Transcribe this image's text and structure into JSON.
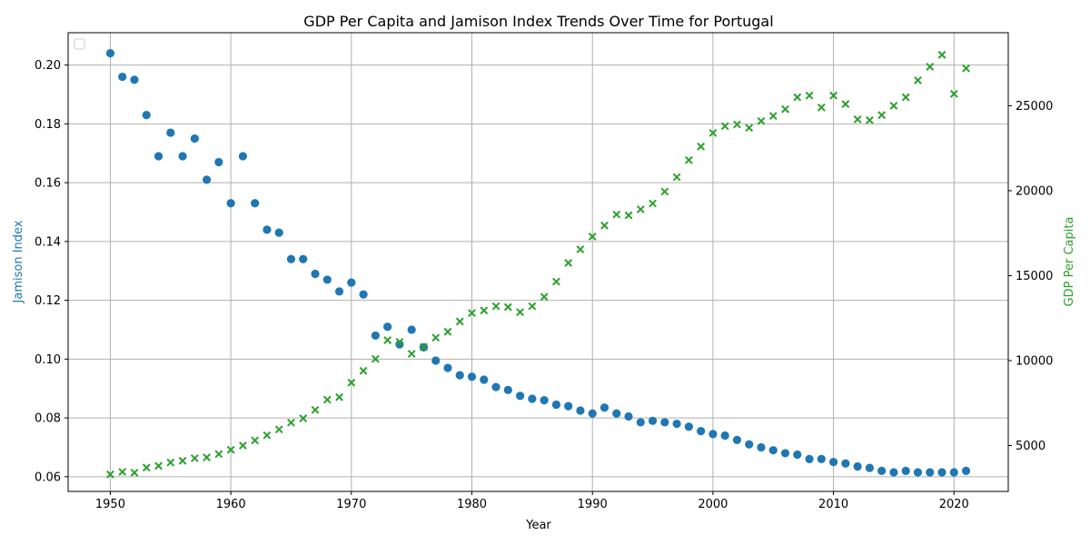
{
  "chart_data": {
    "type": "scatter",
    "title": "GDP Per Capita and Jamison Index Trends Over Time for Portugal",
    "xlabel": "Year",
    "ylabel_left": "Jamison Index",
    "ylabel_right": "GDP Per Capita",
    "xlim": [
      1946.5,
      2024.5
    ],
    "ylim_left": [
      0.055,
      0.211
    ],
    "ylim_right": [
      2300,
      29300
    ],
    "x_ticks": [
      1950,
      1960,
      1970,
      1980,
      1990,
      2000,
      2010,
      2020
    ],
    "y_left_ticks": [
      "0.06",
      "0.08",
      "0.10",
      "0.12",
      "0.14",
      "0.16",
      "0.18",
      "0.20"
    ],
    "y_right_ticks": [
      "5000",
      "10000",
      "15000",
      "20000",
      "25000"
    ],
    "grid": true,
    "legend": "top-left (empty)",
    "colors": {
      "jamison": "#1f77b4",
      "gdp": "#2ca02c"
    },
    "years": [
      1950,
      1951,
      1952,
      1953,
      1954,
      1955,
      1956,
      1957,
      1958,
      1959,
      1960,
      1961,
      1962,
      1963,
      1964,
      1965,
      1966,
      1967,
      1968,
      1969,
      1970,
      1971,
      1972,
      1973,
      1974,
      1975,
      1976,
      1977,
      1978,
      1979,
      1980,
      1981,
      1982,
      1983,
      1984,
      1985,
      1986,
      1987,
      1988,
      1989,
      1990,
      1991,
      1992,
      1993,
      1994,
      1995,
      1996,
      1997,
      1998,
      1999,
      2000,
      2001,
      2002,
      2003,
      2004,
      2005,
      2006,
      2007,
      2008,
      2009,
      2010,
      2011,
      2012,
      2013,
      2014,
      2015,
      2016,
      2017,
      2018,
      2019,
      2020,
      2021
    ],
    "series": [
      {
        "name": "Jamison Index",
        "axis": "left",
        "marker": "circle",
        "values": [
          0.204,
          0.196,
          0.195,
          0.183,
          0.169,
          0.177,
          0.169,
          0.175,
          0.161,
          0.167,
          0.153,
          0.169,
          0.153,
          0.144,
          0.143,
          0.134,
          0.134,
          0.129,
          0.127,
          0.123,
          0.126,
          0.122,
          0.108,
          0.111,
          0.105,
          0.11,
          0.104,
          0.0995,
          0.097,
          0.0945,
          0.094,
          0.093,
          0.0905,
          0.0895,
          0.0875,
          0.0865,
          0.086,
          0.0845,
          0.084,
          0.0825,
          0.0815,
          0.0835,
          0.0815,
          0.0805,
          0.0785,
          0.079,
          0.0785,
          0.078,
          0.077,
          0.0755,
          0.0745,
          0.074,
          0.0725,
          0.071,
          0.07,
          0.069,
          0.068,
          0.0675,
          0.066,
          0.066,
          0.065,
          0.0645,
          0.0635,
          0.063,
          0.062,
          0.0615,
          0.062,
          0.0615,
          0.0615,
          0.0615,
          0.0615,
          0.062
        ]
      },
      {
        "name": "GDP Per Capita",
        "axis": "right",
        "marker": "x",
        "values": [
          3300,
          3450,
          3400,
          3700,
          3800,
          4000,
          4100,
          4250,
          4300,
          4500,
          4750,
          5000,
          5300,
          5600,
          5950,
          6350,
          6600,
          7100,
          7700,
          7850,
          8700,
          9400,
          10100,
          11200,
          11100,
          10400,
          10800,
          11350,
          11700,
          12300,
          12800,
          12950,
          13200,
          13150,
          12850,
          13200,
          13750,
          14650,
          15750,
          16550,
          17300,
          17950,
          18600,
          18550,
          18900,
          19250,
          19950,
          20800,
          21800,
          22600,
          23400,
          23800,
          23900,
          23700,
          24100,
          24400,
          24800,
          25500,
          25600,
          24900,
          25600,
          25100,
          24200,
          24150,
          24450,
          25000,
          25500,
          26500,
          27300,
          28000,
          25700,
          27200
        ]
      }
    ]
  }
}
